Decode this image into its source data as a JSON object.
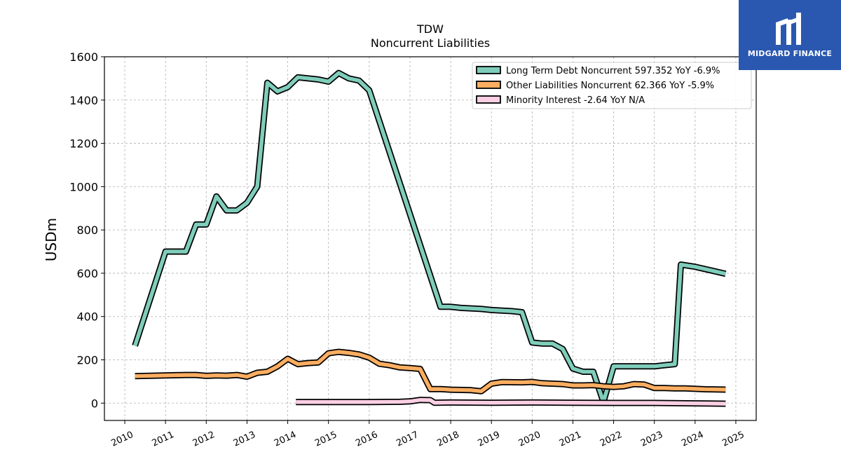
{
  "chart_data": {
    "type": "line",
    "title": "TDW",
    "subtitle": "Noncurrent  Liabilities",
    "ylabel": "USDm",
    "xlabel": "",
    "xlim": [
      2009.5,
      2025.5
    ],
    "ylim": [
      -80,
      1600
    ],
    "yticks": [
      0,
      200,
      400,
      600,
      800,
      1000,
      1200,
      1400,
      1600
    ],
    "xticks": [
      2010,
      2011,
      2012,
      2013,
      2014,
      2015,
      2016,
      2017,
      2018,
      2019,
      2020,
      2021,
      2022,
      2023,
      2024,
      2025
    ],
    "grid": true,
    "legend_position": "top-right",
    "series": [
      {
        "name": "Long Term Debt Noncurrent  597.352 YoY -6.9%",
        "color": "#7fcdbb",
        "points": [
          [
            2010.25,
            265
          ],
          [
            2011.0,
            700
          ],
          [
            2011.5,
            700
          ],
          [
            2011.75,
            825
          ],
          [
            2012.0,
            825
          ],
          [
            2012.25,
            955
          ],
          [
            2012.5,
            890
          ],
          [
            2012.75,
            890
          ],
          [
            2013.0,
            925
          ],
          [
            2013.25,
            1000
          ],
          [
            2013.5,
            1480
          ],
          [
            2013.75,
            1440
          ],
          [
            2014.0,
            1460
          ],
          [
            2014.25,
            1505
          ],
          [
            2014.75,
            1495
          ],
          [
            2015.0,
            1485
          ],
          [
            2015.25,
            1525
          ],
          [
            2015.5,
            1500
          ],
          [
            2015.75,
            1490
          ],
          [
            2016.0,
            1445
          ],
          [
            2017.75,
            445
          ],
          [
            2018.0,
            445
          ],
          [
            2018.25,
            440
          ],
          [
            2018.75,
            435
          ],
          [
            2019.0,
            430
          ],
          [
            2019.5,
            425
          ],
          [
            2019.75,
            420
          ],
          [
            2020.0,
            280
          ],
          [
            2020.25,
            275
          ],
          [
            2020.5,
            275
          ],
          [
            2020.75,
            250
          ],
          [
            2021.0,
            160
          ],
          [
            2021.25,
            145
          ],
          [
            2021.5,
            145
          ],
          [
            2021.75,
            5
          ],
          [
            2022.0,
            170
          ],
          [
            2022.25,
            170
          ],
          [
            2023.0,
            170
          ],
          [
            2023.25,
            175
          ],
          [
            2023.5,
            180
          ],
          [
            2023.65,
            640
          ],
          [
            2024.0,
            630
          ],
          [
            2024.75,
            597.352
          ]
        ]
      },
      {
        "name": "Other Liabilities Noncurrent  62.366 YoY -5.9%",
        "color": "#fdae61",
        "points": [
          [
            2010.25,
            125
          ],
          [
            2011.0,
            128
          ],
          [
            2011.5,
            130
          ],
          [
            2011.75,
            130
          ],
          [
            2012.0,
            126
          ],
          [
            2012.25,
            128
          ],
          [
            2012.5,
            127
          ],
          [
            2012.75,
            130
          ],
          [
            2013.0,
            122
          ],
          [
            2013.25,
            140
          ],
          [
            2013.5,
            145
          ],
          [
            2013.75,
            170
          ],
          [
            2014.0,
            205
          ],
          [
            2014.25,
            180
          ],
          [
            2014.5,
            185
          ],
          [
            2014.75,
            188
          ],
          [
            2015.0,
            230
          ],
          [
            2015.25,
            237
          ],
          [
            2015.5,
            232
          ],
          [
            2015.75,
            225
          ],
          [
            2016.0,
            210
          ],
          [
            2016.25,
            182
          ],
          [
            2016.5,
            175
          ],
          [
            2016.75,
            165
          ],
          [
            2017.0,
            162
          ],
          [
            2017.25,
            158
          ],
          [
            2017.5,
            65
          ],
          [
            2017.75,
            65
          ],
          [
            2018.0,
            62
          ],
          [
            2018.5,
            60
          ],
          [
            2018.75,
            55
          ],
          [
            2019.0,
            90
          ],
          [
            2019.25,
            97
          ],
          [
            2019.75,
            96
          ],
          [
            2020.0,
            98
          ],
          [
            2020.25,
            92
          ],
          [
            2020.75,
            88
          ],
          [
            2021.0,
            82
          ],
          [
            2021.25,
            82
          ],
          [
            2021.5,
            83
          ],
          [
            2021.75,
            78
          ],
          [
            2022.0,
            75
          ],
          [
            2022.25,
            78
          ],
          [
            2022.5,
            88
          ],
          [
            2022.75,
            86
          ],
          [
            2023.0,
            70
          ],
          [
            2023.25,
            70
          ],
          [
            2023.5,
            68
          ],
          [
            2023.75,
            68
          ],
          [
            2024.0,
            66
          ],
          [
            2024.25,
            64
          ],
          [
            2024.75,
            62.366
          ]
        ]
      },
      {
        "name": "Minority Interest  -2.64 YoY N/A",
        "color": "#fbcfe3",
        "points": [
          [
            2014.2,
            5
          ],
          [
            2015.0,
            5
          ],
          [
            2016.0,
            5
          ],
          [
            2016.75,
            6
          ],
          [
            2017.0,
            8
          ],
          [
            2017.25,
            15
          ],
          [
            2017.5,
            14
          ],
          [
            2017.6,
            2
          ],
          [
            2018.0,
            3
          ],
          [
            2019.0,
            2
          ],
          [
            2020.0,
            3
          ],
          [
            2021.0,
            2
          ],
          [
            2022.0,
            1
          ],
          [
            2023.0,
            1
          ],
          [
            2024.0,
            -1
          ],
          [
            2024.75,
            -2.64
          ]
        ]
      }
    ]
  },
  "logo": {
    "text": "MIDGARD FINANCE",
    "color": "#2a58b0"
  }
}
